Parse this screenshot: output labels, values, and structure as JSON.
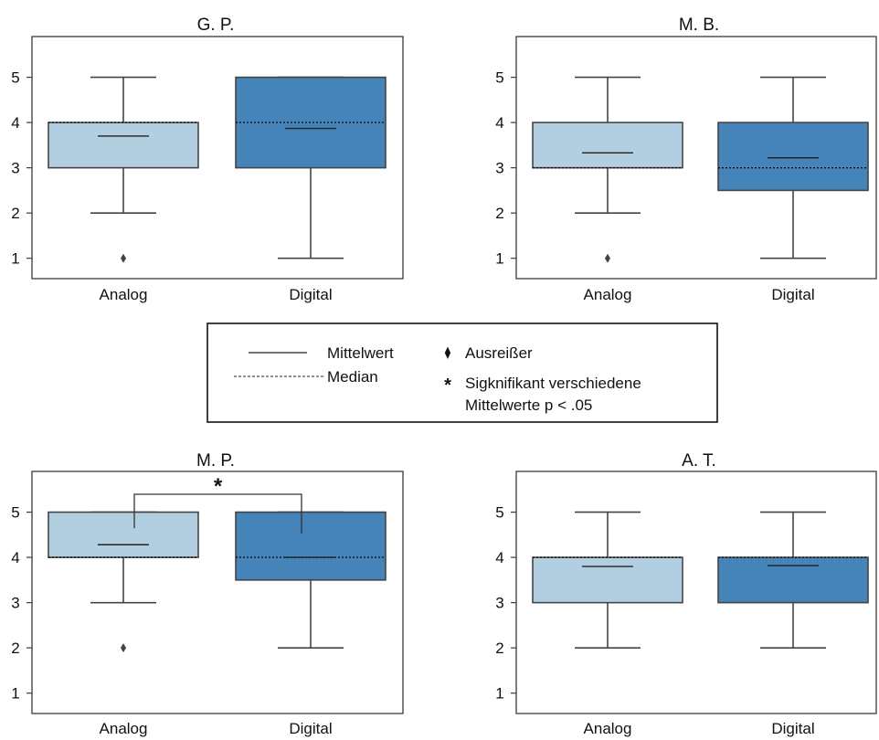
{
  "colors": {
    "analog": "#b2cfe2",
    "digital": "#4484b9",
    "line": "#444444",
    "frame": "#3a3a3a",
    "text": "#111111"
  },
  "legend": {
    "mean_label": "Mittelwert",
    "median_label": "Median",
    "outlier_label": "Ausreißer",
    "outlier_symbol": "⧫",
    "sig_symbol": "*",
    "sig_label_line1": "Sigknifikant verschiedene",
    "sig_label_line2": "Mittelwerte p < .05"
  },
  "chart_data": [
    {
      "type": "box",
      "title": "G. P.",
      "categories": [
        "Analog",
        "Digital"
      ],
      "yticks": [
        "1",
        "2",
        "3",
        "4",
        "5"
      ],
      "ylim": [
        0.55,
        5.9
      ],
      "boxes": [
        {
          "category": "Analog",
          "whisker_low": 2,
          "q1": 3,
          "median": 4,
          "q3": 4,
          "whisker_high": 5,
          "mean": 3.7,
          "outliers": [
            1
          ]
        },
        {
          "category": "Digital",
          "whisker_low": 1,
          "q1": 3,
          "median": 4,
          "q3": 5,
          "whisker_high": 5,
          "mean": 3.87,
          "outliers": []
        }
      ],
      "significance": null
    },
    {
      "type": "box",
      "title": "M. B.",
      "categories": [
        "Analog",
        "Digital"
      ],
      "yticks": [
        "1",
        "2",
        "3",
        "4",
        "5"
      ],
      "ylim": [
        0.55,
        5.9
      ],
      "boxes": [
        {
          "category": "Analog",
          "whisker_low": 2,
          "q1": 3,
          "median": 3,
          "q3": 4,
          "whisker_high": 5,
          "mean": 3.33,
          "outliers": [
            1
          ]
        },
        {
          "category": "Digital",
          "whisker_low": 1,
          "q1": 2.5,
          "median": 3,
          "q3": 4,
          "whisker_high": 5,
          "mean": 3.22,
          "outliers": []
        }
      ],
      "significance": null
    },
    {
      "type": "box",
      "title": "M. P.",
      "categories": [
        "Analog",
        "Digital"
      ],
      "yticks": [
        "1",
        "2",
        "3",
        "4",
        "5"
      ],
      "ylim": [
        0.55,
        5.9
      ],
      "boxes": [
        {
          "category": "Analog",
          "whisker_low": 3,
          "q1": 4,
          "median": 4,
          "q3": 5,
          "whisker_high": 5,
          "mean": 4.28,
          "outliers": [
            2
          ]
        },
        {
          "category": "Digital",
          "whisker_low": 2,
          "q1": 3.5,
          "median": 4,
          "q3": 5,
          "whisker_high": 5,
          "mean": 4.0,
          "outliers": []
        }
      ],
      "significance": {
        "label": "*",
        "between": [
          "Analog",
          "Digital"
        ]
      }
    },
    {
      "type": "box",
      "title": "A. T.",
      "categories": [
        "Analog",
        "Digital"
      ],
      "yticks": [
        "1",
        "2",
        "3",
        "4",
        "5"
      ],
      "ylim": [
        0.55,
        5.9
      ],
      "boxes": [
        {
          "category": "Analog",
          "whisker_low": 2,
          "q1": 3,
          "median": 4,
          "q3": 4,
          "whisker_high": 5,
          "mean": 3.8,
          "outliers": []
        },
        {
          "category": "Digital",
          "whisker_low": 2,
          "q1": 3,
          "median": 4,
          "q3": 4,
          "whisker_high": 5,
          "mean": 3.82,
          "outliers": []
        }
      ],
      "significance": null
    }
  ]
}
